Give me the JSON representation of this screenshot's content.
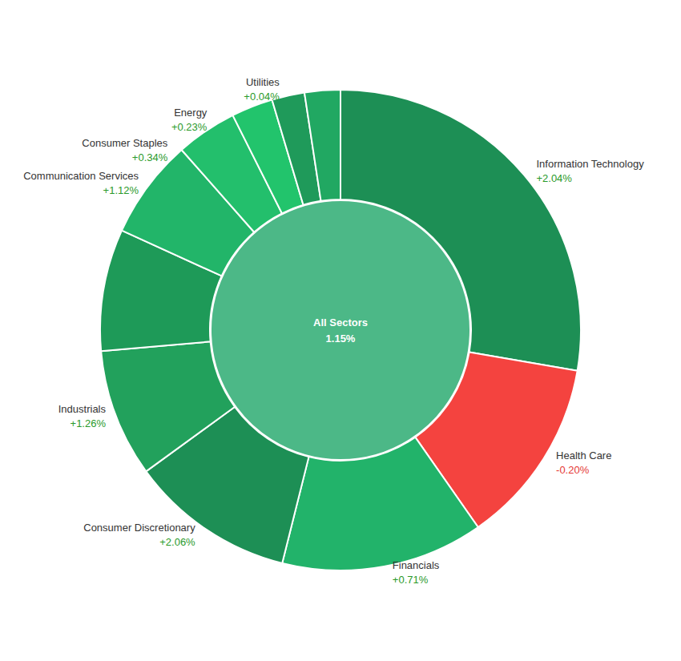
{
  "chart_data": {
    "type": "donut",
    "center_label": "All Sectors",
    "center_value": 1.15,
    "center_value_label": "1.15%",
    "center_color": "#4cb887",
    "categories": [
      "Information Technology",
      "Health Care",
      "Financials",
      "Consumer Discretionary",
      "Industrials",
      null,
      "Communication Services",
      "Consumer Staples",
      "Energy",
      "Utilities",
      null
    ],
    "weights": [
      27.7,
      12.6,
      13.6,
      11.1,
      8.6,
      8.2,
      6.7,
      4.1,
      2.8,
      2.2,
      2.4
    ],
    "values": [
      2.04,
      -0.2,
      0.71,
      2.06,
      1.26,
      null,
      1.12,
      0.34,
      0.23,
      0.04,
      null
    ],
    "value_labels": [
      "+2.04%",
      "-0.20%",
      "+0.71%",
      "+2.06%",
      "+1.26%",
      null,
      "+1.12%",
      "+0.34%",
      "+0.23%",
      "+0.04%",
      null
    ],
    "colors": [
      "#1d8f55",
      "#f4433f",
      "#22b36a",
      "#1d8f55",
      "#22a15c",
      "#1e9a58",
      "#22b569",
      "#23bf6c",
      "#22c46c",
      "#1f9a5a",
      "#21a862"
    ],
    "data_labels": true
  }
}
